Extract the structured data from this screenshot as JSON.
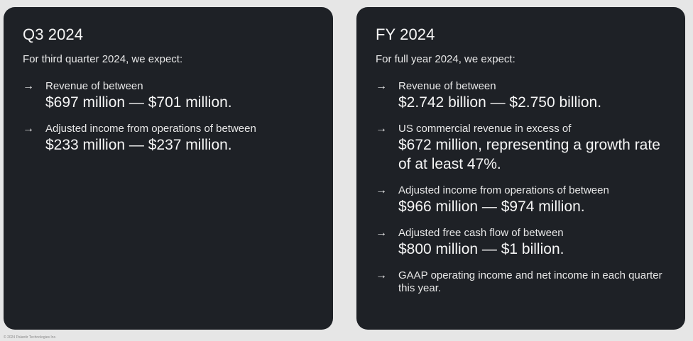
{
  "q3": {
    "title": "Q3 2024",
    "intro": "For third quarter 2024, we expect:",
    "items": [
      {
        "arrow": "→",
        "label": "Revenue of between",
        "value": "$697 million — $701 million."
      },
      {
        "arrow": "→",
        "label": "Adjusted income from operations of between",
        "value": "$233 million — $237 million."
      }
    ]
  },
  "fy": {
    "title": "FY 2024",
    "intro": "For full year 2024, we expect:",
    "items": [
      {
        "arrow": "→",
        "label": "Revenue of between",
        "value": "$2.742 billion — $2.750 billion."
      },
      {
        "arrow": "→",
        "label": "US commercial revenue in excess of",
        "value": "$672 million, representing a growth rate of at least 47%."
      },
      {
        "arrow": "→",
        "label": "Adjusted income from operations of between",
        "value": "$966 million — $974 million."
      },
      {
        "arrow": "→",
        "label": "Adjusted free cash flow of between",
        "value": "$800 million — $1 billion."
      },
      {
        "arrow": "→",
        "label": "GAAP operating income and net income in each quarter this year.",
        "value": ""
      }
    ]
  },
  "footer": "© 2024 Palantir Technologies Inc.",
  "colors": {
    "background": "#e6e6e6",
    "card": "#1e2126",
    "text": "#f2f2f2"
  }
}
